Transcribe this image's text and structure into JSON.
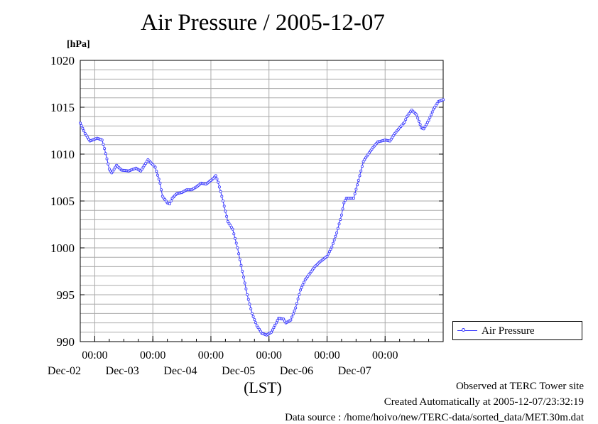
{
  "chart_data": {
    "type": "line",
    "title": "Air Pressure / 2005-12-07",
    "ylabel": "[hPa]",
    "xlabel": "(LST)",
    "ylim": [
      990,
      1020
    ],
    "yticks": [
      990,
      995,
      1000,
      1005,
      1010,
      1015,
      1020
    ],
    "xlim": [
      "2005-12-01T18:00",
      "2005-12-08T00:00"
    ],
    "xticks": [
      {
        "time_label": "00:00",
        "date_label": "Dec-02"
      },
      {
        "time_label": "00:00",
        "date_label": "Dec-03"
      },
      {
        "time_label": "00:00",
        "date_label": "Dec-04"
      },
      {
        "time_label": "00:00",
        "date_label": "Dec-05"
      },
      {
        "time_label": "00:00",
        "date_label": "Dec-06"
      },
      {
        "time_label": "00:00",
        "date_label": "Dec-07"
      }
    ],
    "grid": true,
    "legend_position": "right",
    "series": [
      {
        "name": "Air Pressure",
        "color": "#3333ff",
        "marker": "open-circle",
        "sampling_minutes": 30,
        "points": [
          [
            "2005-12-01T18:00",
            1013.3
          ],
          [
            "2005-12-01T20:00",
            1012.2
          ],
          [
            "2005-12-01T22:00",
            1011.4
          ],
          [
            "2005-12-02T01:00",
            1011.7
          ],
          [
            "2005-12-02T03:00",
            1011.5
          ],
          [
            "2005-12-02T04:00",
            1010.6
          ],
          [
            "2005-12-02T06:00",
            1008.4
          ],
          [
            "2005-12-02T07:00",
            1008.0
          ],
          [
            "2005-12-02T09:00",
            1008.8
          ],
          [
            "2005-12-02T11:00",
            1008.3
          ],
          [
            "2005-12-02T14:00",
            1008.2
          ],
          [
            "2005-12-02T17:00",
            1008.5
          ],
          [
            "2005-12-02T19:00",
            1008.2
          ],
          [
            "2005-12-02T22:00",
            1009.4
          ],
          [
            "2005-12-03T01:00",
            1008.6
          ],
          [
            "2005-12-03T03:00",
            1006.9
          ],
          [
            "2005-12-03T04:00",
            1005.5
          ],
          [
            "2005-12-03T06:00",
            1004.8
          ],
          [
            "2005-12-03T07:00",
            1004.7
          ],
          [
            "2005-12-03T08:00",
            1005.3
          ],
          [
            "2005-12-03T10:00",
            1005.8
          ],
          [
            "2005-12-03T12:00",
            1005.9
          ],
          [
            "2005-12-03T14:00",
            1006.2
          ],
          [
            "2005-12-03T16:00",
            1006.2
          ],
          [
            "2005-12-03T18:00",
            1006.5
          ],
          [
            "2005-12-03T20:00",
            1006.9
          ],
          [
            "2005-12-03T22:00",
            1006.8
          ],
          [
            "2005-12-04T01:00",
            1007.4
          ],
          [
            "2005-12-04T02:00",
            1007.7
          ],
          [
            "2005-12-04T03:00",
            1007.0
          ],
          [
            "2005-12-04T05:00",
            1005.0
          ],
          [
            "2005-12-04T07:00",
            1002.8
          ],
          [
            "2005-12-04T09:00",
            1002.0
          ],
          [
            "2005-12-04T11:00",
            1000.0
          ],
          [
            "2005-12-04T13:00",
            997.5
          ],
          [
            "2005-12-04T15:00",
            995.0
          ],
          [
            "2005-12-04T17:00",
            993.0
          ],
          [
            "2005-12-04T19:00",
            991.7
          ],
          [
            "2005-12-04T21:00",
            990.9
          ],
          [
            "2005-12-04T23:00",
            990.7
          ],
          [
            "2005-12-05T01:00",
            991.0
          ],
          [
            "2005-12-05T03:00",
            992.0
          ],
          [
            "2005-12-05T04:00",
            992.5
          ],
          [
            "2005-12-05T06:00",
            992.4
          ],
          [
            "2005-12-05T07:00",
            992.0
          ],
          [
            "2005-12-05T09:00",
            992.3
          ],
          [
            "2005-12-05T11:00",
            993.6
          ],
          [
            "2005-12-05T13:00",
            995.5
          ],
          [
            "2005-12-05T15:00",
            996.6
          ],
          [
            "2005-12-05T17:00",
            997.3
          ],
          [
            "2005-12-05T19:00",
            998.0
          ],
          [
            "2005-12-05T21:00",
            998.5
          ],
          [
            "2005-12-06T00:00",
            999.1
          ],
          [
            "2005-12-06T02:00",
            1000.1
          ],
          [
            "2005-12-06T04:00",
            1001.6
          ],
          [
            "2005-12-06T06:00",
            1003.5
          ],
          [
            "2005-12-06T07:00",
            1004.8
          ],
          [
            "2005-12-06T08:00",
            1005.3
          ],
          [
            "2005-12-06T11:00",
            1005.3
          ],
          [
            "2005-12-06T13:00",
            1007.2
          ],
          [
            "2005-12-06T15:00",
            1009.2
          ],
          [
            "2005-12-06T17:00",
            1010.0
          ],
          [
            "2005-12-06T19:00",
            1010.7
          ],
          [
            "2005-12-06T21:00",
            1011.3
          ],
          [
            "2005-12-07T00:00",
            1011.5
          ],
          [
            "2005-12-07T02:00",
            1011.4
          ],
          [
            "2005-12-07T04:00",
            1012.2
          ],
          [
            "2005-12-07T06:00",
            1012.8
          ],
          [
            "2005-12-07T08:00",
            1013.4
          ],
          [
            "2005-12-07T09:00",
            1014.0
          ],
          [
            "2005-12-07T11:00",
            1014.7
          ],
          [
            "2005-12-07T13:00",
            1014.2
          ],
          [
            "2005-12-07T15:00",
            1012.8
          ],
          [
            "2005-12-07T16:00",
            1012.7
          ],
          [
            "2005-12-07T18:00",
            1013.6
          ],
          [
            "2005-12-07T20:00",
            1014.8
          ],
          [
            "2005-12-07T22:00",
            1015.6
          ],
          [
            "2005-12-08T00:00",
            1015.8
          ]
        ]
      }
    ]
  },
  "footer": {
    "site": "Observed at TERC Tower site",
    "created": "Created Automatically at 2005-12-07/23:32:19",
    "source": "Data source : /home/hoivo/new/TERC-data/sorted_data/MET.30m.dat"
  }
}
